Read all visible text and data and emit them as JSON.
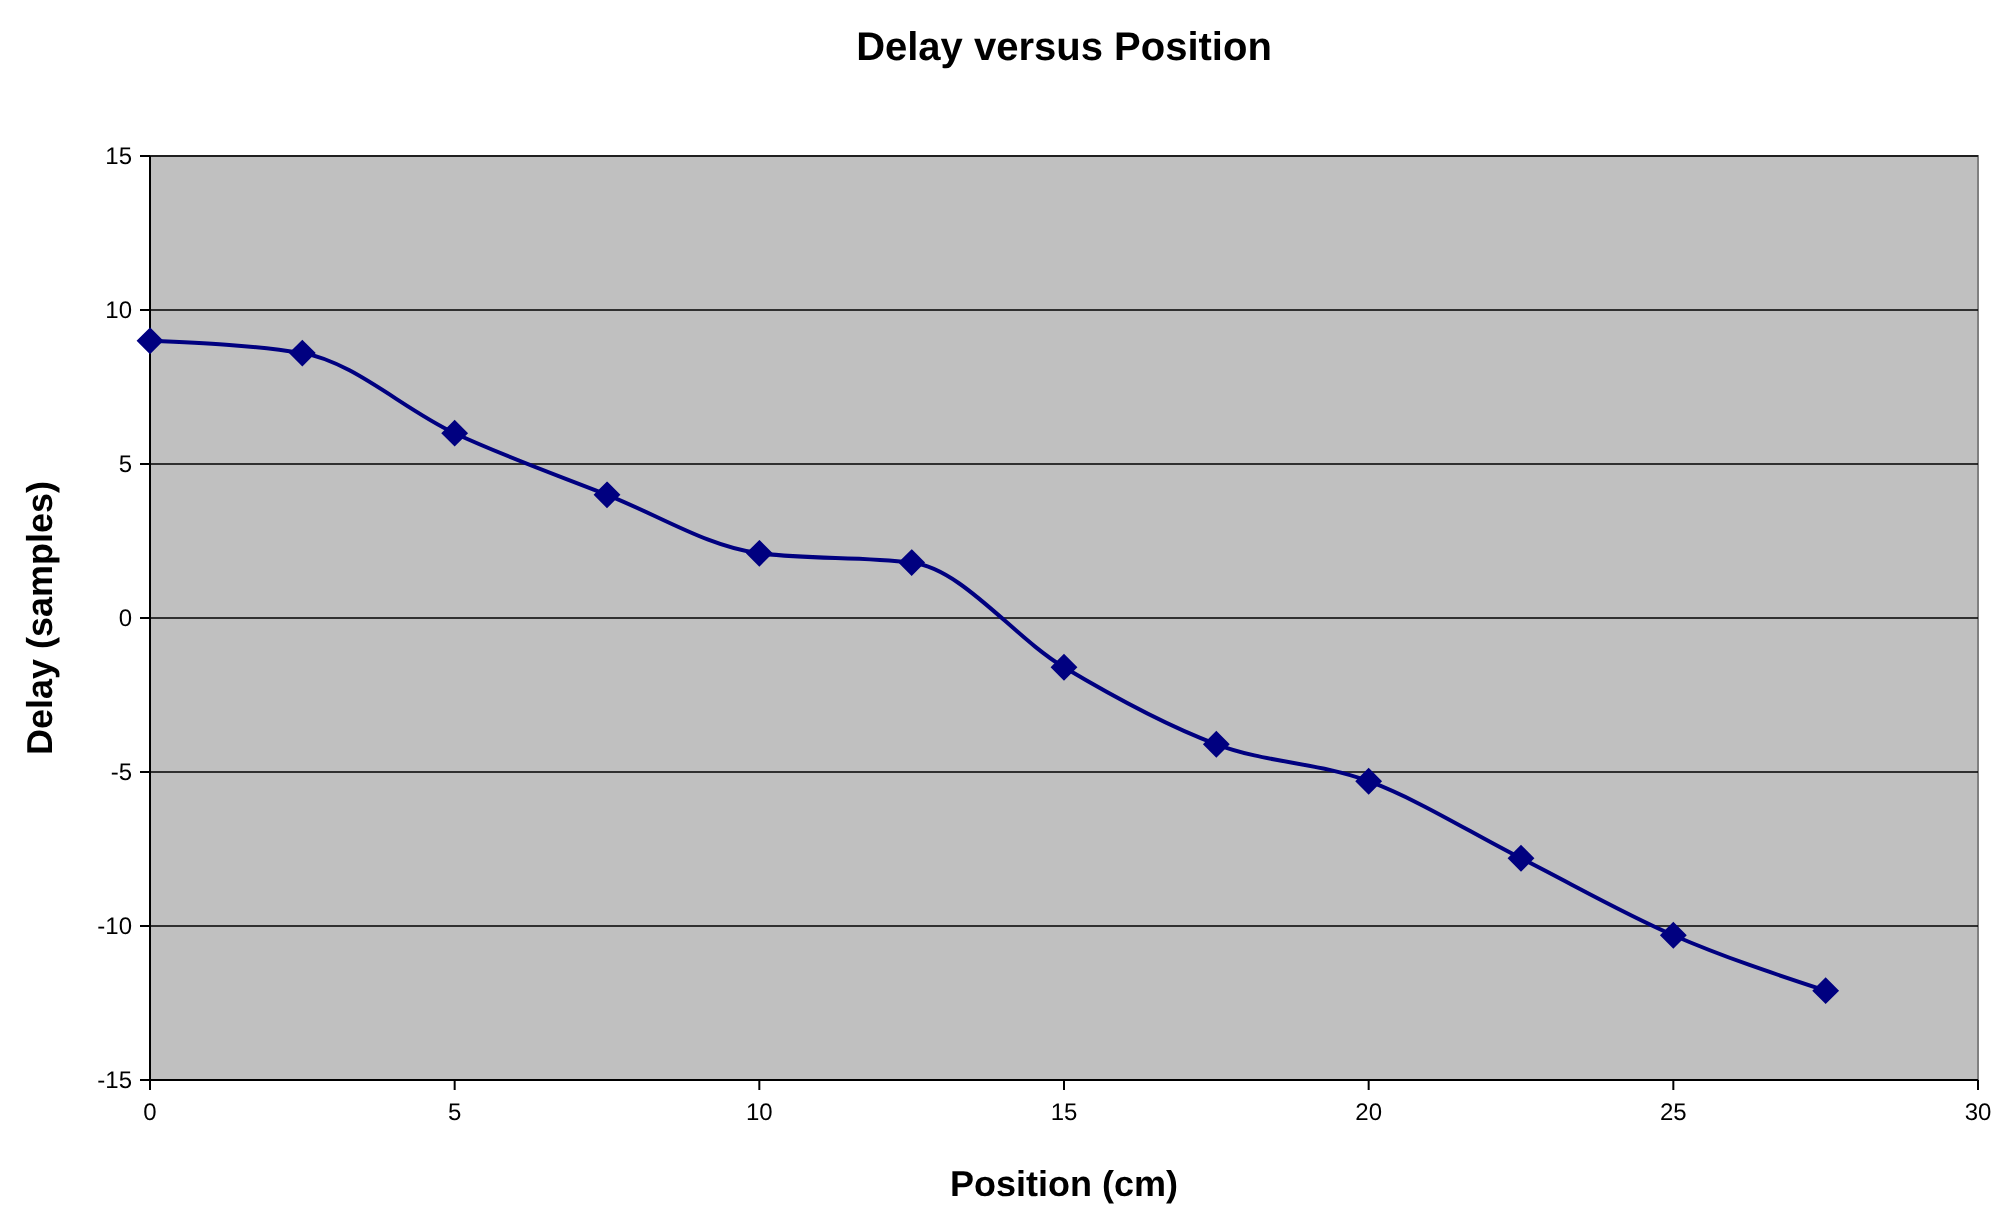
{
  "chart_data": {
    "type": "line",
    "title": "Delay versus Position",
    "xlabel": "Position (cm)",
    "ylabel": "Delay (samples)",
    "x": [
      0,
      2.5,
      5,
      7.5,
      10,
      12.5,
      15,
      17.5,
      20,
      22.5,
      25,
      27.5
    ],
    "series": [
      {
        "color": "#000080",
        "values": [
          9.0,
          8.6,
          6.0,
          4.0,
          2.1,
          1.8,
          -1.6,
          -4.1,
          -5.3,
          -7.8,
          -10.3,
          -12.1
        ]
      }
    ],
    "xlim": [
      0,
      30
    ],
    "xticks": [
      0,
      5,
      10,
      15,
      20,
      25,
      30
    ],
    "ylim": [
      -15,
      15
    ],
    "yticks": [
      -15,
      -10,
      -5,
      0,
      5,
      10,
      15
    ],
    "grid": "y",
    "marker": "diamond",
    "line_style": "solid"
  }
}
